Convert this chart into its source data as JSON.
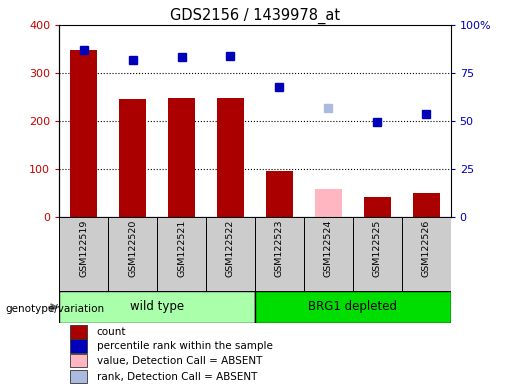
{
  "title": "GDS2156 / 1439978_at",
  "samples": [
    "GSM122519",
    "GSM122520",
    "GSM122521",
    "GSM122522",
    "GSM122523",
    "GSM122524",
    "GSM122525",
    "GSM122526"
  ],
  "bar_values": [
    348,
    245,
    248,
    248,
    95,
    58,
    42,
    50
  ],
  "bar_colors": [
    "#AA0000",
    "#AA0000",
    "#AA0000",
    "#AA0000",
    "#AA0000",
    "#FFB6C1",
    "#AA0000",
    "#AA0000"
  ],
  "scatter_values": [
    348,
    328,
    333,
    335,
    270,
    228,
    198,
    215
  ],
  "scatter_colors": [
    "#0000BB",
    "#0000BB",
    "#0000BB",
    "#0000BB",
    "#0000BB",
    "#AABBDD",
    "#0000BB",
    "#0000BB"
  ],
  "ylim_left": [
    0,
    400
  ],
  "ylim_right": [
    0,
    100
  ],
  "yticks_left": [
    0,
    100,
    200,
    300,
    400
  ],
  "yticks_right": [
    0,
    25,
    50,
    75,
    100
  ],
  "ytick_labels_right": [
    "0",
    "25",
    "50",
    "75",
    "100%"
  ],
  "group1_label": "wild type",
  "group2_label": "BRG1 depleted",
  "group1_color": "#AAFFAA",
  "group2_color": "#00DD00",
  "genotype_label": "genotype/variation",
  "legend_items": [
    {
      "label": "count",
      "color": "#AA0000"
    },
    {
      "label": "percentile rank within the sample",
      "color": "#0000BB"
    },
    {
      "label": "value, Detection Call = ABSENT",
      "color": "#FFB6C1"
    },
    {
      "label": "rank, Detection Call = ABSENT",
      "color": "#AABBDD"
    }
  ],
  "left_yaxis_color": "#CC0000",
  "right_yaxis_color": "#0000BB",
  "bar_width": 0.55
}
